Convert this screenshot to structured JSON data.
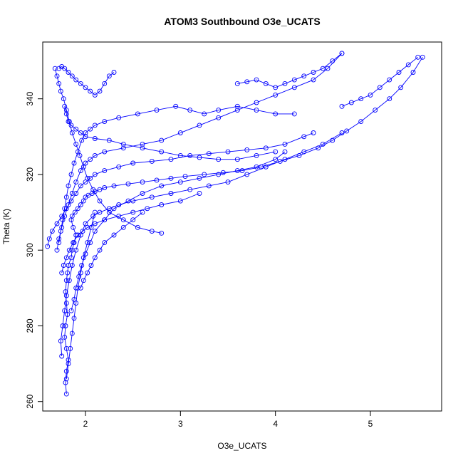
{
  "chart_data": {
    "type": "line",
    "title": "ATOM3 Southbound O3e_UCATS",
    "xlabel": "O3e_UCATS",
    "ylabel": "Theta (K)",
    "xlim": [
      1.55,
      5.75
    ],
    "ylim": [
      257.5,
      355
    ],
    "x_ticks": [
      2,
      3,
      4,
      5
    ],
    "y_ticks": [
      260,
      280,
      300,
      320,
      340
    ],
    "grid": false,
    "legend": "none",
    "marker": "open-circle",
    "color": "#0000ff",
    "series": [
      {
        "x": [
          1.8,
          1.79,
          1.8,
          1.82,
          1.8,
          1.78,
          1.79,
          1.81,
          1.8,
          1.79,
          1.8,
          1.81,
          1.82,
          1.85,
          1.86,
          1.88,
          1.9,
          1.87,
          1.85,
          1.86,
          1.89,
          1.92,
          1.95,
          1.98,
          2.0,
          2.03,
          2.07,
          2.1,
          2.15,
          2.2,
          2.3,
          2.45,
          2.6,
          2.75,
          2.9,
          3.05,
          3.25,
          3.45,
          3.65,
          3.85,
          4.05,
          4.25,
          4.45,
          4.6,
          4.75,
          4.9,
          5.05,
          5.2,
          5.32,
          5.45,
          5.55
        ],
        "y": [
          262,
          265,
          268,
          271,
          274,
          277,
          280,
          283,
          286,
          289,
          292,
          294,
          296,
          298,
          300,
          302,
          304,
          306,
          308,
          309,
          310,
          311,
          312,
          313,
          314,
          314.5,
          315,
          315.5,
          316,
          316.5,
          317,
          317.5,
          318,
          318.5,
          319,
          319.5,
          320,
          320.5,
          321,
          322,
          323.5,
          325,
          327,
          329,
          331.5,
          334,
          337,
          340,
          343,
          347,
          351
        ]
      },
      {
        "x": [
          1.75,
          1.74,
          1.76,
          1.78,
          1.8,
          1.83,
          1.86,
          1.9,
          1.95,
          2.0,
          2.08,
          2.15,
          2.25,
          2.35,
          2.5,
          2.7,
          2.9,
          3.1,
          3.3,
          3.5,
          3.7,
          3.9,
          4.1,
          4.3,
          4.5,
          4.7
        ],
        "y": [
          272,
          276,
          280,
          284,
          288,
          292,
          296,
          300,
          304,
          307,
          309,
          310,
          311,
          312,
          313,
          314,
          315,
          316,
          317,
          318,
          320,
          322,
          324,
          326,
          328,
          331
        ]
      },
      {
        "x": [
          1.7,
          1.72,
          1.75,
          1.78,
          1.82,
          1.86,
          1.9,
          1.95,
          2.0,
          2.05,
          2.1,
          2.2,
          2.4,
          2.6,
          2.8,
          3.0,
          3.2,
          3.4,
          3.6,
          3.8,
          4.0,
          4.2,
          4.4,
          4.55,
          4.7
        ],
        "y": [
          300,
          303,
          306,
          309,
          312,
          315,
          318,
          321,
          323,
          324,
          325,
          326,
          327,
          328,
          329,
          331,
          333,
          335,
          337,
          339,
          341,
          343,
          345,
          348,
          352
        ]
      },
      {
        "x": [
          1.72,
          1.74,
          1.76,
          1.78,
          1.8,
          1.82,
          1.85,
          1.88,
          1.92,
          1.96,
          2.0,
          2.05,
          2.1,
          2.2,
          2.35,
          2.55,
          2.75,
          2.95,
          3.1,
          3.25,
          3.4,
          3.6,
          3.8,
          4.0,
          4.2
        ],
        "y": [
          302,
          305,
          308,
          311,
          314,
          317,
          320,
          323,
          326,
          329,
          331,
          332,
          333,
          334,
          335,
          336,
          337,
          338,
          337,
          336,
          337,
          338,
          337,
          336,
          336
        ]
      },
      {
        "x": [
          1.6,
          1.62,
          1.65,
          1.7,
          1.75,
          1.8,
          1.85,
          1.9,
          1.95,
          2.0,
          2.05,
          2.1,
          2.2,
          2.35,
          2.5,
          2.7,
          2.9,
          3.1,
          3.3,
          3.5,
          3.7,
          3.9,
          4.1,
          4.3,
          4.4
        ],
        "y": [
          301,
          303,
          305,
          307,
          309,
          311,
          313,
          315,
          317,
          318,
          319,
          320,
          321,
          322,
          323,
          323.5,
          324,
          325,
          325.5,
          326,
          326.5,
          327,
          328,
          330,
          331
        ]
      },
      {
        "x": [
          1.68,
          1.7,
          1.72,
          1.74,
          1.77,
          1.8,
          1.83,
          1.86,
          1.9,
          1.94,
          1.98,
          2.02,
          2.08,
          2.15,
          2.25,
          2.4,
          2.55,
          2.7,
          2.8
        ],
        "y": [
          348,
          346,
          344,
          342,
          340,
          337,
          334,
          331,
          328,
          325,
          322,
          319,
          316,
          313,
          310,
          308,
          306,
          305,
          304.5
        ]
      },
      {
        "x": [
          1.72,
          1.75,
          1.78,
          1.82,
          1.86,
          1.9,
          1.95,
          2.0,
          2.05,
          2.1,
          2.15,
          2.2,
          2.25,
          2.3
        ],
        "y": [
          348,
          348.5,
          348,
          347,
          346,
          345,
          344,
          343,
          342,
          341,
          342,
          344,
          346,
          347
        ]
      },
      {
        "x": [
          1.78,
          1.8,
          1.82,
          1.85,
          1.9,
          1.95,
          2.0,
          2.1,
          2.25,
          2.4,
          2.6,
          2.8,
          3.0,
          3.2,
          3.4,
          3.6,
          3.8,
          4.0
        ],
        "y": [
          338,
          336,
          334,
          333,
          332,
          331,
          330,
          329.5,
          329,
          328,
          327,
          326,
          325,
          324.5,
          324,
          324,
          325,
          326
        ]
      },
      {
        "x": [
          1.75,
          1.77,
          1.8,
          1.83,
          1.87,
          1.92,
          1.97,
          2.02,
          2.1,
          2.2,
          2.35,
          2.5,
          2.65,
          2.8,
          3.0,
          3.2
        ],
        "y": [
          294,
          296,
          298,
          300,
          302,
          304,
          305,
          306,
          307,
          308,
          309,
          310,
          311,
          312,
          313,
          315
        ]
      },
      {
        "x": [
          1.85,
          1.88,
          1.9,
          1.93,
          1.96,
          2.0,
          2.05,
          2.1,
          2.2,
          2.3,
          2.45,
          2.6,
          2.8,
          3.0,
          3.2,
          3.4,
          3.6,
          3.8,
          4.0,
          4.1
        ],
        "y": [
          284,
          287,
          290,
          293,
          296,
          299,
          302,
          305,
          308,
          311,
          313,
          315,
          317,
          318,
          319,
          320,
          321,
          322,
          324,
          326
        ]
      },
      {
        "x": [
          3.6,
          3.7,
          3.8,
          3.9,
          4.0,
          4.1,
          4.2,
          4.3,
          4.4,
          4.5,
          4.6,
          4.7
        ],
        "y": [
          344,
          344.5,
          345,
          344,
          343,
          344,
          345,
          346,
          347,
          348,
          350,
          352
        ]
      },
      {
        "x": [
          4.7,
          4.8,
          4.9,
          5.0,
          5.1,
          5.2,
          5.3,
          5.4,
          5.5
        ],
        "y": [
          338,
          339,
          340,
          341,
          343,
          345,
          347,
          349,
          351
        ]
      },
      {
        "x": [
          1.95,
          1.98,
          2.02,
          2.06,
          2.1,
          2.15,
          2.2,
          2.3,
          2.4,
          2.5,
          2.6
        ],
        "y": [
          290,
          292,
          294,
          296,
          298,
          300,
          302,
          304,
          306,
          308,
          310
        ]
      },
      {
        "x": [
          1.8,
          1.82,
          1.84,
          1.86,
          1.88,
          1.9,
          1.92,
          1.95,
          1.98,
          2.02,
          2.06,
          2.1
        ],
        "y": [
          266,
          270,
          274,
          278,
          282,
          286,
          290,
          294,
          298,
          302,
          306,
          310
        ]
      }
    ]
  }
}
